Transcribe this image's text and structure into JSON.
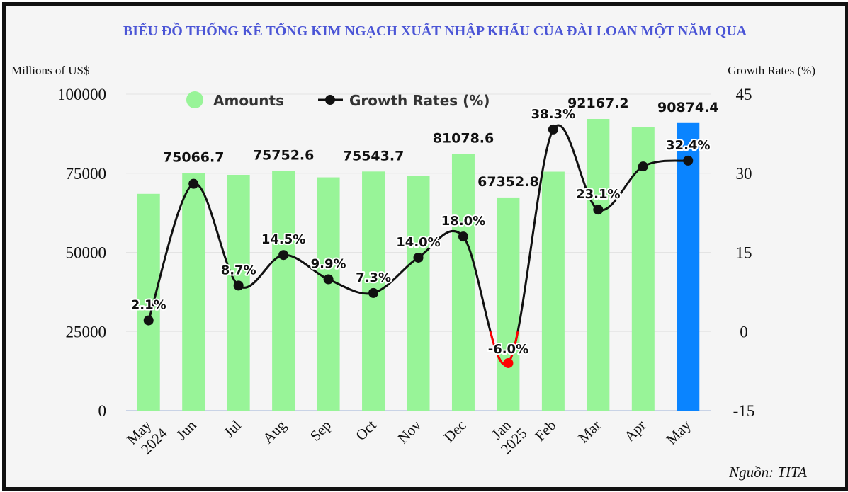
{
  "chart_data": {
    "type": "bar",
    "title": "BIỂU ĐỒ THỐNG KÊ TỔNG KIM NGẠCH XUẤT NHẬP KHẨU CỦA ĐÀI LOAN MỘT NĂM QUA",
    "y_left_label": "Millions of US$",
    "y_right_label": "Growth Rates (%)",
    "y_left_range": [
      0,
      100000
    ],
    "y_left_ticks": [
      "0",
      "25000",
      "50000",
      "75000",
      "100000"
    ],
    "y_right_range": [
      -15,
      45
    ],
    "y_right_ticks": [
      "-15",
      "0",
      "15",
      "30",
      "45"
    ],
    "categories": [
      {
        "line1": "May",
        "line2": "2024"
      },
      {
        "line1": "Jun",
        "line2": ""
      },
      {
        "line1": "Jul",
        "line2": ""
      },
      {
        "line1": "Aug",
        "line2": ""
      },
      {
        "line1": "Sep",
        "line2": ""
      },
      {
        "line1": "Oct",
        "line2": ""
      },
      {
        "line1": "Nov",
        "line2": ""
      },
      {
        "line1": "Dec",
        "line2": ""
      },
      {
        "line1": "Jan",
        "line2": "2025"
      },
      {
        "line1": "Feb",
        "line2": ""
      },
      {
        "line1": "Mar",
        "line2": ""
      },
      {
        "line1": "Apr",
        "line2": ""
      },
      {
        "line1": "May",
        "line2": ""
      }
    ],
    "series": [
      {
        "name": "Amounts",
        "type": "bar",
        "axis": "left",
        "values": [
          68500,
          75066.7,
          74500,
          75752.6,
          73700,
          75543.7,
          74200,
          81078.6,
          67352.8,
          75500,
          92167.2,
          89700,
          90874.4
        ],
        "labels": [
          "",
          "75066.7",
          "",
          "75752.6",
          "",
          "75543.7",
          "",
          "81078.6",
          "67352.8",
          "",
          "92167.2",
          "",
          "90874.4"
        ],
        "color": "#98f498",
        "highlight_color": "#0a84ff",
        "highlight_index": 12
      },
      {
        "name": "Growth Rates (%)",
        "type": "line",
        "axis": "right",
        "values": [
          2.1,
          28.0,
          8.7,
          14.5,
          9.9,
          7.3,
          14.0,
          18.0,
          -6.0,
          38.3,
          23.1,
          31.3,
          32.4
        ],
        "labels": [
          "2.1%",
          "",
          "8.7%",
          "14.5%",
          "9.9%",
          "7.3%",
          "14.0%",
          "18.0%",
          "-6.0%",
          "38.3%",
          "23.1%",
          "",
          "32.4%"
        ],
        "color": "#111111",
        "negative_color": "#ff0000"
      }
    ],
    "legend": {
      "position": "top",
      "amounts_label": "Amounts",
      "rates_label": "Growth Rates (%)"
    },
    "grid": true,
    "source": "Nguồn: TITA"
  }
}
